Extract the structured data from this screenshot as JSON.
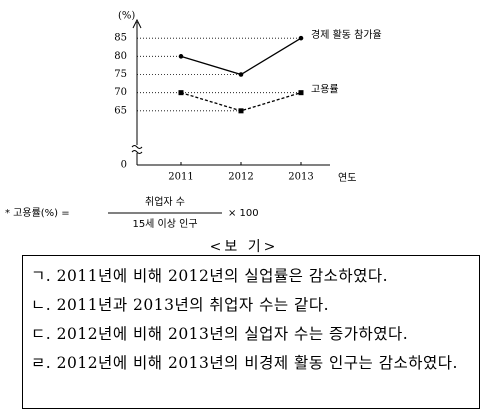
{
  "chart_data": {
    "type": "line",
    "y_label": "(%)",
    "x_label": "연도",
    "categories": [
      "2011",
      "2012",
      "2013"
    ],
    "series": [
      {
        "name": "경제 활동 참가율",
        "color": "#000000",
        "style": "solid",
        "marker": "circle",
        "values": [
          80,
          75,
          85
        ]
      },
      {
        "name": "고용률",
        "color": "#000000",
        "style": "dashed",
        "marker": "square",
        "values": [
          70,
          65,
          70
        ]
      }
    ],
    "ylim": [
      0,
      90
    ],
    "ybreak": [
      0,
      60
    ],
    "yticks": [
      0,
      65,
      70,
      75,
      80,
      85
    ],
    "grid": true
  },
  "formula": {
    "lhs": "* 고용률(%) =",
    "numerator": "취업자 수",
    "denominator": "15세 이상 인구",
    "rhs": "× 100"
  },
  "box": {
    "title": "<보 기>",
    "statements": [
      "ㄱ. 2011년에 비해 2012년의 실업률은 감소하였다.",
      "ㄴ. 2011년과 2013년의 취업자 수는 같다.",
      "ㄷ. 2012년에 비해 2013년의 실업자 수는 증가하였다.",
      "ㄹ. 2012년에 비해 2013년의 비경제 활동 인구는 감소하였다."
    ]
  }
}
